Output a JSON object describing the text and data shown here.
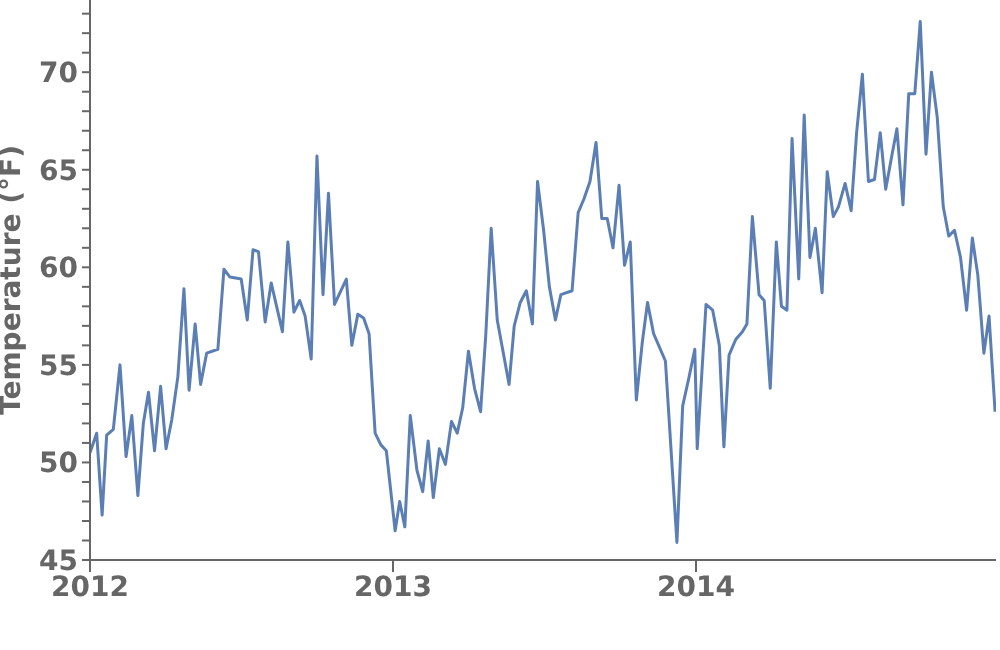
{
  "chart_data": {
    "type": "line",
    "ylabel": "Temperature (°F)",
    "x": [
      2012.0,
      2012.022,
      2012.04,
      2012.055,
      2012.077,
      2012.099,
      2012.119,
      2012.138,
      2012.158,
      2012.176,
      2012.193,
      2012.213,
      2012.233,
      2012.251,
      2012.27,
      2012.29,
      2012.31,
      2012.327,
      2012.347,
      2012.365,
      2012.385,
      2012.422,
      2012.442,
      2012.462,
      2012.499,
      2012.519,
      2012.538,
      2012.556,
      2012.578,
      2012.598,
      2012.635,
      2012.653,
      2012.673,
      2012.692,
      2012.71,
      2012.73,
      2012.749,
      2012.769,
      2012.787,
      2012.807,
      2012.846,
      2012.864,
      2012.884,
      2012.903,
      2012.921,
      2012.941,
      2012.96,
      2012.978,
      2013.007,
      2013.022,
      2013.039,
      2013.057,
      2013.079,
      2013.098,
      2013.116,
      2013.133,
      2013.153,
      2013.173,
      2013.193,
      2013.212,
      2013.23,
      2013.249,
      2013.269,
      2013.289,
      2013.306,
      2013.324,
      2013.344,
      2013.363,
      2013.383,
      2013.4,
      2013.42,
      2013.44,
      2013.46,
      2013.477,
      2013.497,
      2013.516,
      2013.536,
      2013.554,
      2013.591,
      2013.611,
      2013.63,
      2013.65,
      2013.67,
      2013.689,
      2013.707,
      2013.726,
      2013.746,
      2013.764,
      2013.783,
      2013.803,
      2013.823,
      2013.84,
      2013.86,
      2013.899,
      2013.937,
      2013.956,
      2013.976,
      2013.996,
      2014.004,
      2014.033,
      2014.055,
      2014.077,
      2014.092,
      2014.109,
      2014.131,
      2014.153,
      2014.168,
      2014.186,
      2014.208,
      2014.225,
      2014.245,
      2014.265,
      2014.282,
      2014.3,
      2014.317,
      2014.339,
      2014.357,
      2014.376,
      2014.394,
      2014.416,
      2014.433,
      2014.453,
      2014.47,
      2014.492,
      2014.512,
      2014.53,
      2014.549,
      2014.569,
      2014.589,
      2014.608,
      2014.626,
      2014.646,
      2014.663,
      2014.683,
      2014.702,
      2014.722,
      2014.74,
      2014.759,
      2014.777,
      2014.796,
      2014.816,
      2014.834,
      2014.853,
      2014.873,
      2014.893,
      2014.912,
      2014.93,
      2014.95,
      2014.967,
      2014.987
    ],
    "series": [
      {
        "color": "#5b7fb5",
        "values": [
          50.5,
          51.5,
          47.3,
          51.4,
          51.7,
          55,
          50.3,
          52.4,
          48.3,
          52,
          53.6,
          50.6,
          53.9,
          50.7,
          52.2,
          54.4,
          58.9,
          53.7,
          57.1,
          54,
          55.6,
          55.8,
          59.9,
          59.5,
          59.4,
          57.3,
          60.9,
          60.8,
          57.2,
          59.2,
          56.7,
          61.3,
          57.7,
          58.3,
          57.5,
          55.3,
          65.7,
          58.6,
          63.8,
          58.1,
          59.4,
          56,
          57.6,
          57.4,
          56.6,
          51.5,
          50.9,
          50.6,
          46.5,
          48,
          46.7,
          52.4,
          49.6,
          48.5,
          51.1,
          48.2,
          50.7,
          49.9,
          52.1,
          51.5,
          52.8,
          55.7,
          53.8,
          52.6,
          56.5,
          62,
          57.3,
          55.7,
          54,
          57,
          58.2,
          58.8,
          57.1,
          64.4,
          61.9,
          59,
          57.3,
          58.6,
          58.8,
          62.8,
          63.5,
          64.4,
          66.4,
          62.5,
          62.5,
          61,
          64.2,
          60.1,
          61.3,
          53.2,
          56.2,
          58.2,
          56.6,
          55.2,
          45.9,
          52.9,
          54.3,
          55.8,
          50.7,
          58.1,
          57.8,
          56,
          50.8,
          55.5,
          56.3,
          56.7,
          57.1,
          62.6,
          58.6,
          58.3,
          53.8,
          61.3,
          58,
          57.8,
          66.6,
          59.4,
          67.8,
          60.5,
          62,
          58.7,
          64.9,
          62.6,
          63.1,
          64.3,
          62.9,
          66.9,
          69.9,
          64.4,
          64.5,
          66.9,
          64,
          65.7,
          67.1,
          63.2,
          68.9,
          68.9,
          72.6,
          65.8,
          70,
          67.7,
          63.1,
          61.6,
          61.9,
          60.5,
          57.8,
          61.5,
          59.6,
          55.6,
          57.5,
          52.6
        ]
      }
    ],
    "xlim": [
      2012,
      2014.99
    ],
    "xticks": [
      2012,
      2013,
      2014
    ],
    "ylim": [
      45,
      73.7
    ],
    "yticks": [
      45,
      {
        "value": 46,
        "label": null
      },
      {
        "value": 47,
        "label": null
      },
      {
        "value": 48,
        "label": null
      },
      {
        "value": 49,
        "label": null
      },
      50,
      {
        "value": 51,
        "label": null
      },
      {
        "value": 52,
        "label": null
      },
      {
        "value": 53,
        "label": null
      },
      {
        "value": 54,
        "label": null
      },
      55,
      {
        "value": 56,
        "label": null
      },
      {
        "value": 57,
        "label": null
      },
      {
        "value": 58,
        "label": null
      },
      {
        "value": 59,
        "label": null
      },
      60,
      {
        "value": 61,
        "label": null
      },
      {
        "value": 62,
        "label": null
      },
      {
        "value": 63,
        "label": null
      },
      {
        "value": 64,
        "label": null
      },
      65,
      {
        "value": 66,
        "label": null
      },
      {
        "value": 67,
        "label": null
      },
      {
        "value": 68,
        "label": null
      },
      {
        "value": 69,
        "label": null
      },
      70,
      {
        "value": 71,
        "label": null
      },
      {
        "value": 72,
        "label": null
      },
      {
        "value": 73,
        "label": null
      }
    ],
    "grid": false,
    "legend": false,
    "marker": "none",
    "line_style": "solid"
  }
}
